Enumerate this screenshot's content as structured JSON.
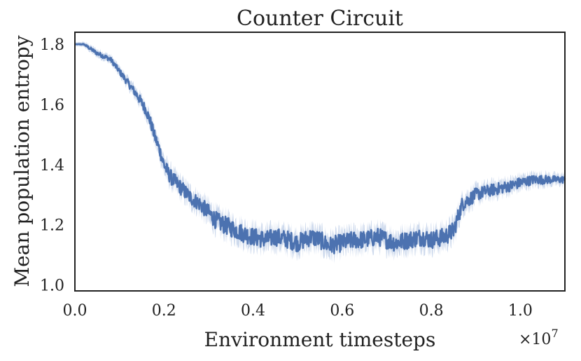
{
  "chart_data": {
    "type": "line",
    "title": "Counter Circuit",
    "xlabel": "Environment timesteps",
    "ylabel": "Mean population entropy",
    "x_offset_label": "×10",
    "x_offset_exponent": "7",
    "xlim": [
      0.0,
      1.1
    ],
    "ylim": [
      0.98,
      1.84
    ],
    "x_ticks": [
      0.0,
      0.2,
      0.4,
      0.6,
      0.8,
      1.0
    ],
    "x_tick_labels": [
      "0.0",
      "0.2",
      "0.4",
      "0.6",
      "0.8",
      "1.0"
    ],
    "y_ticks": [
      1.0,
      1.2,
      1.4,
      1.6,
      1.8
    ],
    "y_tick_labels": [
      "1.0",
      "1.2",
      "1.4",
      "1.6",
      "1.8"
    ],
    "grid": false,
    "line_color": "#4c72b0",
    "band_color": "#c6d3ea",
    "series": [
      {
        "x": [
          0.0,
          0.02,
          0.03,
          0.05,
          0.08,
          0.1,
          0.12,
          0.14,
          0.16,
          0.17,
          0.18,
          0.19,
          0.2,
          0.21,
          0.22,
          0.24,
          0.26,
          0.28,
          0.3,
          0.32,
          0.35,
          0.38,
          0.4,
          0.43,
          0.45,
          0.48,
          0.5,
          0.53,
          0.55,
          0.57,
          0.6,
          0.63,
          0.65,
          0.68,
          0.7,
          0.72,
          0.75,
          0.78,
          0.8,
          0.83,
          0.85,
          0.87,
          0.9,
          0.92,
          0.95,
          0.98,
          1.0,
          1.03,
          1.05,
          1.08,
          1.1
        ],
        "y": [
          1.8,
          1.8,
          1.79,
          1.77,
          1.75,
          1.71,
          1.67,
          1.63,
          1.58,
          1.54,
          1.49,
          1.45,
          1.4,
          1.37,
          1.35,
          1.32,
          1.29,
          1.27,
          1.24,
          1.21,
          1.19,
          1.17,
          1.16,
          1.15,
          1.16,
          1.15,
          1.14,
          1.16,
          1.15,
          1.13,
          1.14,
          1.15,
          1.15,
          1.16,
          1.15,
          1.14,
          1.15,
          1.16,
          1.15,
          1.16,
          1.18,
          1.27,
          1.3,
          1.31,
          1.32,
          1.33,
          1.34,
          1.35,
          1.35,
          1.35,
          1.35
        ],
        "noise": [
          0.0,
          0.002,
          0.005,
          0.007,
          0.008,
          0.01,
          0.012,
          0.015,
          0.018,
          0.02,
          0.02,
          0.022,
          0.023,
          0.025,
          0.025,
          0.025,
          0.025,
          0.025,
          0.028,
          0.03,
          0.03,
          0.03,
          0.03,
          0.03,
          0.03,
          0.03,
          0.03,
          0.03,
          0.03,
          0.03,
          0.03,
          0.03,
          0.03,
          0.03,
          0.03,
          0.03,
          0.03,
          0.03,
          0.03,
          0.03,
          0.03,
          0.025,
          0.022,
          0.02,
          0.02,
          0.018,
          0.018,
          0.015,
          0.015,
          0.012,
          0.012
        ]
      }
    ]
  }
}
